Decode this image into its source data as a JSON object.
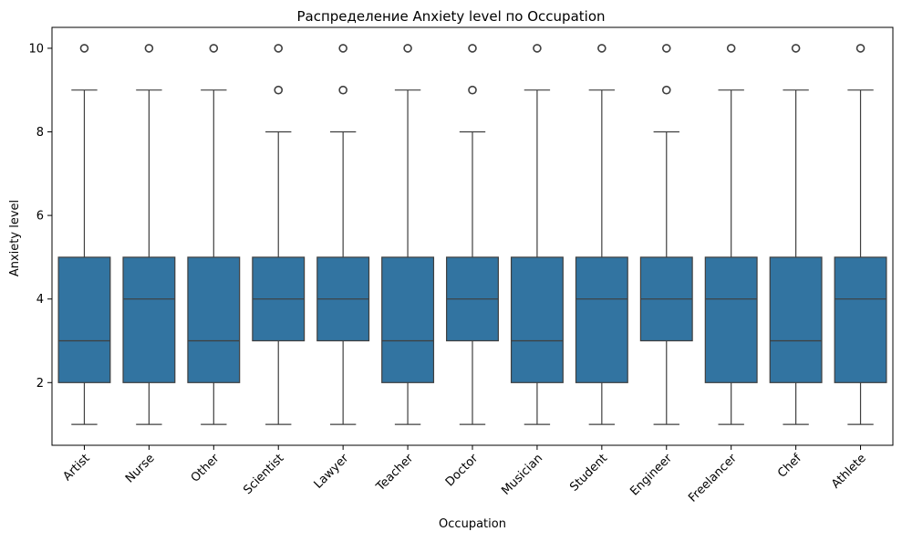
{
  "chart_data": {
    "type": "box",
    "title": "Распределение Anxiety level по Occupation",
    "xlabel": "Occupation",
    "ylabel": "Anxiety level",
    "ylim": [
      0.5,
      10.5
    ],
    "yticks": [
      2,
      4,
      6,
      8,
      10
    ],
    "grid": false,
    "color": "#3274a1",
    "categories": [
      "Artist",
      "Nurse",
      "Other",
      "Scientist",
      "Lawyer",
      "Teacher",
      "Doctor",
      "Musician",
      "Student",
      "Engineer",
      "Freelancer",
      "Chef",
      "Athlete"
    ],
    "boxes": [
      {
        "whisker_low": 1,
        "q1": 2,
        "median": 3,
        "q3": 5,
        "whisker_high": 9,
        "outliers": [
          10
        ]
      },
      {
        "whisker_low": 1,
        "q1": 2,
        "median": 4,
        "q3": 5,
        "whisker_high": 9,
        "outliers": [
          10
        ]
      },
      {
        "whisker_low": 1,
        "q1": 2,
        "median": 3,
        "q3": 5,
        "whisker_high": 9,
        "outliers": [
          10
        ]
      },
      {
        "whisker_low": 1,
        "q1": 3,
        "median": 4,
        "q3": 5,
        "whisker_high": 8,
        "outliers": [
          9,
          10
        ]
      },
      {
        "whisker_low": 1,
        "q1": 3,
        "median": 4,
        "q3": 5,
        "whisker_high": 8,
        "outliers": [
          9,
          10
        ]
      },
      {
        "whisker_low": 1,
        "q1": 2,
        "median": 3,
        "q3": 5,
        "whisker_high": 9,
        "outliers": [
          10
        ]
      },
      {
        "whisker_low": 1,
        "q1": 3,
        "median": 4,
        "q3": 5,
        "whisker_high": 8,
        "outliers": [
          9,
          10
        ]
      },
      {
        "whisker_low": 1,
        "q1": 2,
        "median": 3,
        "q3": 5,
        "whisker_high": 9,
        "outliers": [
          10
        ]
      },
      {
        "whisker_low": 1,
        "q1": 2,
        "median": 4,
        "q3": 5,
        "whisker_high": 9,
        "outliers": [
          10
        ]
      },
      {
        "whisker_low": 1,
        "q1": 3,
        "median": 4,
        "q3": 5,
        "whisker_high": 8,
        "outliers": [
          9,
          10
        ]
      },
      {
        "whisker_low": 1,
        "q1": 2,
        "median": 4,
        "q3": 5,
        "whisker_high": 9,
        "outliers": [
          10
        ]
      },
      {
        "whisker_low": 1,
        "q1": 2,
        "median": 3,
        "q3": 5,
        "whisker_high": 9,
        "outliers": [
          10
        ]
      },
      {
        "whisker_low": 1,
        "q1": 2,
        "median": 4,
        "q3": 5,
        "whisker_high": 9,
        "outliers": [
          10
        ]
      }
    ]
  }
}
